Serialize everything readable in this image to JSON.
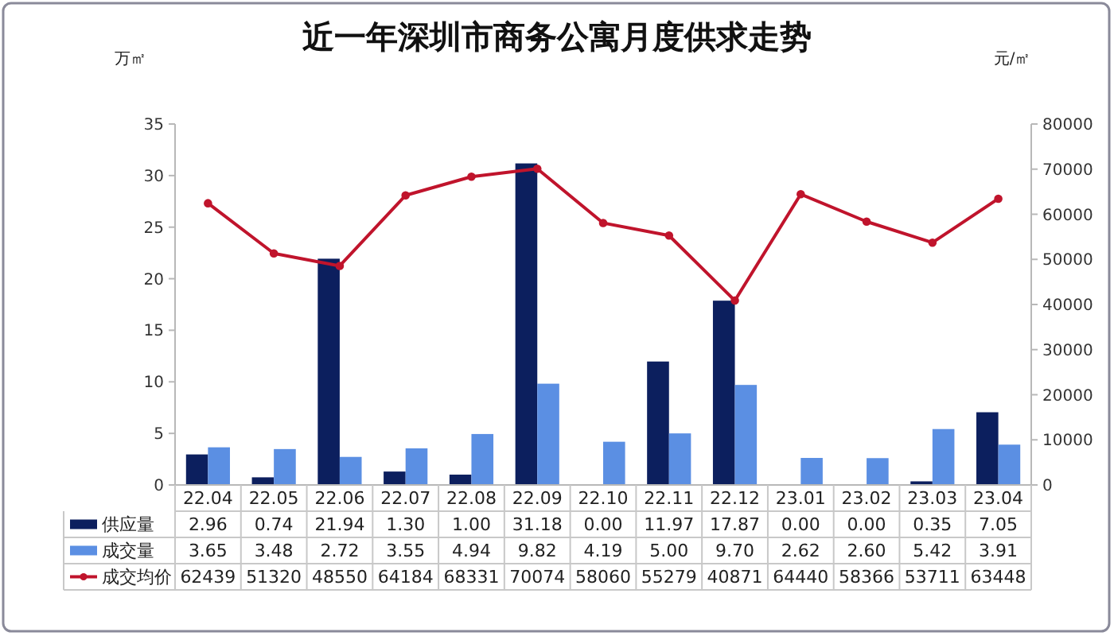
{
  "chart_data": {
    "type": "bar",
    "title": "近一年深圳市商务公寓月度供求走势",
    "ylabel": "万㎡",
    "y2label": "元/㎡",
    "categories": [
      "22.04",
      "22.05",
      "22.06",
      "22.07",
      "22.08",
      "22.09",
      "22.10",
      "22.11",
      "22.12",
      "23.01",
      "23.02",
      "23.03",
      "23.04"
    ],
    "series": [
      {
        "name": "供应量",
        "color": "#0c1f5e",
        "values": [
          2.96,
          0.74,
          21.94,
          1.3,
          1.0,
          31.18,
          0.0,
          11.97,
          17.87,
          0.0,
          0.0,
          0.35,
          7.05
        ],
        "value_labels": [
          "2.96",
          "0.74",
          "21.94",
          "1.30",
          "1.00",
          "31.18",
          "0.00",
          "11.97",
          "17.87",
          "0.00",
          "0.00",
          "0.35",
          "7.05"
        ]
      },
      {
        "name": "成交量",
        "color": "#5b8fe3",
        "values": [
          3.65,
          3.48,
          2.72,
          3.55,
          4.94,
          9.82,
          4.19,
          5.0,
          9.7,
          2.62,
          2.6,
          5.42,
          3.91
        ],
        "value_labels": [
          "3.65",
          "3.48",
          "2.72",
          "3.55",
          "4.94",
          "9.82",
          "4.19",
          "5.00",
          "9.70",
          "2.62",
          "2.60",
          "5.42",
          "3.91"
        ]
      },
      {
        "name": "成交均价",
        "type": "line",
        "axis": "y2",
        "color": "#c0142c",
        "values": [
          62439,
          51320,
          48550,
          64184,
          68331,
          70074,
          58060,
          55279,
          40871,
          64440,
          58366,
          53711,
          63448
        ],
        "value_labels": [
          "62439",
          "51320",
          "48550",
          "64184",
          "68331",
          "70074",
          "58060",
          "55279",
          "40871",
          "64440",
          "58366",
          "53711",
          "63448"
        ]
      }
    ],
    "ylim": [
      0,
      35
    ],
    "yticks": [
      0,
      5,
      10,
      15,
      20,
      25,
      30,
      35
    ],
    "y2lim": [
      0,
      80000
    ],
    "y2ticks": [
      0,
      10000,
      20000,
      30000,
      40000,
      50000,
      60000,
      70000,
      80000
    ],
    "legend": "bottom left",
    "marker": "circle"
  }
}
